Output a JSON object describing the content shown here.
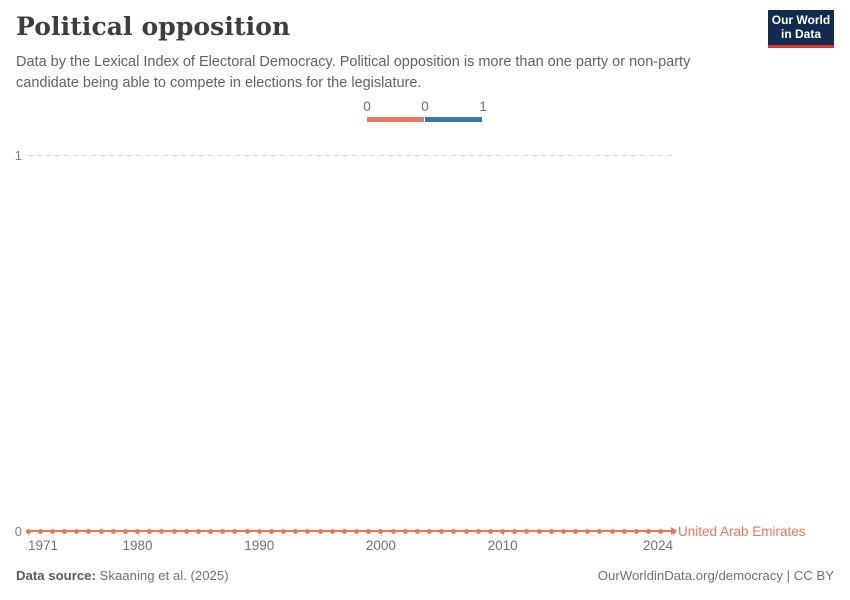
{
  "header": {
    "title": "Political opposition",
    "subtitle": "Data by the Lexical Index of Electoral Democracy. Political opposition is more than one party or non-party candidate being able to compete in elections for the legislature.",
    "logo": {
      "line1": "Our World",
      "line2": "in Data"
    }
  },
  "colors": {
    "orange": "#e8795c",
    "blue": "#3a77ab",
    "navy": "#112b4e",
    "red": "#e0362c"
  },
  "legend": {
    "tick_labels": [
      "0",
      "0",
      "1"
    ],
    "segment_colors": [
      "#e8795c",
      "#3a77ab"
    ]
  },
  "chart_data": {
    "type": "line",
    "title": "Political opposition",
    "xlabel": "",
    "ylabel": "",
    "xlim": [
      1971,
      2024
    ],
    "ylim": [
      0,
      1
    ],
    "grid": "dashed horizontal gridline at y=1 only",
    "legend_position": "top-center, binary color scale 0=orange 1=blue",
    "x_tick_labels": [
      1971,
      1980,
      1990,
      2000,
      2010,
      2024
    ],
    "y_tick_labels": [
      0,
      1
    ],
    "series": [
      {
        "name": "United Arab Emirates",
        "color": "#e8795c",
        "x_start": 1971,
        "x_end": 2024,
        "values": [
          0,
          0,
          0,
          0,
          0,
          0,
          0,
          0,
          0,
          0,
          0,
          0,
          0,
          0,
          0,
          0,
          0,
          0,
          0,
          0,
          0,
          0,
          0,
          0,
          0,
          0,
          0,
          0,
          0,
          0,
          0,
          0,
          0,
          0,
          0,
          0,
          0,
          0,
          0,
          0,
          0,
          0,
          0,
          0,
          0,
          0,
          0,
          0,
          0,
          0,
          0,
          0,
          0,
          0
        ]
      }
    ]
  },
  "axes": {
    "y1_label": "1",
    "y0_label": "0"
  },
  "footer": {
    "source_label": "Data source:",
    "source_value": " Skaaning et al. (2025)",
    "right_text": "OurWorldinData.org/democracy | CC BY"
  }
}
